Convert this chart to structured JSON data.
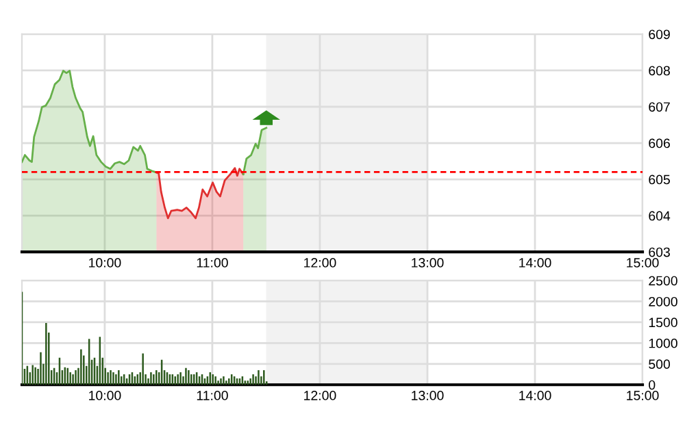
{
  "chart_data": [
    {
      "type": "area",
      "xlim": [
        9.23,
        15
      ],
      "ylim": [
        603,
        609
      ],
      "xticks": [
        {
          "value": 10,
          "label": "10:00"
        },
        {
          "value": 11,
          "label": "11:00"
        },
        {
          "value": 12,
          "label": "12:00"
        },
        {
          "value": 13,
          "label": "13:00"
        },
        {
          "value": 14,
          "label": "14:00"
        },
        {
          "value": 15,
          "label": "15:00"
        }
      ],
      "yticks": [
        603,
        604,
        605,
        606,
        607,
        608,
        609
      ],
      "grid": true,
      "series": [
        {
          "color": "#66b04a",
          "x": [
            9.23,
            9.258,
            9.3,
            9.322,
            9.343,
            9.386,
            9.416,
            9.451,
            9.494,
            9.536,
            9.579,
            9.614,
            9.644,
            9.674,
            9.7,
            9.73,
            9.773,
            9.794,
            9.837,
            9.863,
            9.893,
            9.923,
            9.966,
            10.009,
            10.052,
            10.094,
            10.137,
            10.18,
            10.223,
            10.266,
            10.309,
            10.33,
            10.373,
            10.395,
            10.438,
            10.481
          ],
          "values": [
            605.48,
            605.67,
            605.52,
            605.48,
            606.17,
            606.6,
            606.99,
            607.03,
            607.24,
            607.62,
            607.74,
            607.99,
            607.93,
            607.99,
            607.55,
            607.24,
            606.95,
            606.86,
            606.17,
            605.92,
            606.19,
            605.67,
            605.48,
            605.35,
            605.29,
            605.44,
            605.48,
            605.42,
            605.52,
            605.89,
            605.79,
            605.92,
            605.67,
            605.29,
            605.23,
            605.19
          ]
        },
        {
          "color": "#e03030",
          "x": [
            10.481,
            10.502,
            10.524,
            10.558,
            10.588,
            10.618,
            10.674,
            10.717,
            10.76,
            10.803,
            10.845,
            10.876,
            10.91,
            10.953,
            11.004,
            11.039,
            11.073,
            11.116,
            11.167,
            11.21,
            11.232,
            11.253,
            11.288
          ],
          "values": [
            605.19,
            605.16,
            604.66,
            604.22,
            603.93,
            604.13,
            604.16,
            604.13,
            604.22,
            604.09,
            603.93,
            604.22,
            604.72,
            604.53,
            604.91,
            604.66,
            604.53,
            604.97,
            605.14,
            605.31,
            605.1,
            605.29,
            605.14
          ]
        },
        {
          "color": "#66b04a",
          "x": [
            11.288,
            11.318,
            11.361,
            11.403,
            11.425,
            11.459,
            11.502
          ],
          "values": [
            605.14,
            605.57,
            605.67,
            605.98,
            605.86,
            606.36,
            606.42
          ]
        }
      ],
      "ref_lines": [
        {
          "axis": "y",
          "value": 605.2,
          "color": "#ff0000",
          "line_style": "dashed"
        }
      ],
      "bands": [
        {
          "axis": "x",
          "from": 11.5,
          "to": 13,
          "color": "#f2f2f2"
        }
      ]
    },
    {
      "type": "bar",
      "xlim": [
        9.23,
        15
      ],
      "ylim": [
        0,
        2500
      ],
      "xticks": [
        {
          "value": 10,
          "label": "10:00"
        },
        {
          "value": 11,
          "label": "11:00"
        },
        {
          "value": 12,
          "label": "12:00"
        },
        {
          "value": 13,
          "label": "13:00"
        },
        {
          "value": 14,
          "label": "14:00"
        },
        {
          "value": 15,
          "label": "15:00"
        }
      ],
      "yticks": [
        0,
        500,
        1000,
        1500,
        2000,
        2500
      ],
      "grid": true,
      "bands": [
        {
          "axis": "x",
          "from": 11.5,
          "to": 13,
          "color": "#f2f2f2"
        }
      ],
      "series": [
        {
          "color": "#2d5a1e",
          "x": [
            9.23,
            9.255,
            9.28,
            9.305,
            9.33,
            9.355,
            9.38,
            9.405,
            9.43,
            9.455,
            9.48,
            9.505,
            9.53,
            9.555,
            9.58,
            9.605,
            9.63,
            9.655,
            9.68,
            9.705,
            9.73,
            9.755,
            9.78,
            9.805,
            9.83,
            9.855,
            9.88,
            9.905,
            9.93,
            9.955,
            9.98,
            10.005,
            10.03,
            10.055,
            10.08,
            10.105,
            10.13,
            10.155,
            10.18,
            10.205,
            10.23,
            10.255,
            10.28,
            10.305,
            10.33,
            10.355,
            10.38,
            10.405,
            10.43,
            10.455,
            10.48,
            10.505,
            10.53,
            10.555,
            10.58,
            10.605,
            10.63,
            10.655,
            10.68,
            10.705,
            10.73,
            10.755,
            10.78,
            10.805,
            10.83,
            10.855,
            10.88,
            10.905,
            10.93,
            10.955,
            10.98,
            11.005,
            11.03,
            11.055,
            11.08,
            11.105,
            11.13,
            11.155,
            11.18,
            11.205,
            11.23,
            11.255,
            11.28,
            11.305,
            11.33,
            11.355,
            11.38,
            11.405,
            11.43,
            11.455,
            11.48,
            11.505
          ],
          "values": [
            2230,
            380,
            450,
            300,
            470,
            420,
            380,
            780,
            500,
            1480,
            1250,
            350,
            400,
            300,
            650,
            350,
            420,
            400,
            300,
            250,
            350,
            400,
            850,
            700,
            450,
            1100,
            600,
            650,
            450,
            1150,
            650,
            400,
            300,
            350,
            300,
            250,
            350,
            200,
            250,
            150,
            250,
            300,
            200,
            250,
            300,
            750,
            250,
            150,
            300,
            250,
            350,
            300,
            600,
            350,
            300,
            250,
            250,
            200,
            250,
            300,
            200,
            400,
            350,
            250,
            250,
            300,
            200,
            250,
            150,
            200,
            300,
            250,
            200,
            100,
            150,
            200,
            100,
            150,
            250,
            200,
            150,
            150,
            200,
            100,
            100,
            150,
            250,
            200,
            350,
            200,
            350,
            80
          ]
        }
      ]
    }
  ]
}
